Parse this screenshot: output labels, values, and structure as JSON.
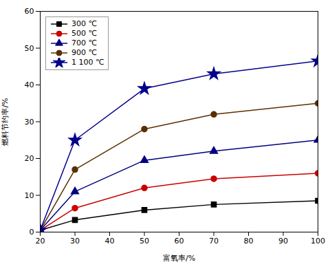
{
  "chart_data": {
    "type": "line",
    "x": [
      20,
      30,
      50,
      70,
      100
    ],
    "series": [
      {
        "name": "300 ℃",
        "color": "#000000",
        "marker": "square",
        "values": [
          0.5,
          3.3,
          6.0,
          7.5,
          8.5
        ]
      },
      {
        "name": "500 ℃",
        "color": "#cc0000",
        "marker": "circle",
        "values": [
          0.5,
          6.5,
          12.0,
          14.5,
          16.0
        ]
      },
      {
        "name": "700 ℃",
        "color": "#00007f",
        "marker": "triangle",
        "values": [
          0.5,
          11.0,
          19.5,
          22.0,
          25.0
        ]
      },
      {
        "name": "900 ℃",
        "color": "#5c2e00",
        "marker": "circle",
        "values": [
          0.5,
          17.0,
          28.0,
          32.0,
          35.0
        ]
      },
      {
        "name": "1 100 ℃",
        "color": "#00008b",
        "marker": "star",
        "values": [
          0.5,
          25.0,
          39.0,
          43.0,
          46.5
        ]
      }
    ],
    "xlabel": "富氧率/%",
    "ylabel": "燃料节约率/%",
    "xlim": [
      20,
      100
    ],
    "ylim": [
      0,
      60
    ],
    "xticks": [
      20,
      30,
      40,
      50,
      60,
      70,
      80,
      90,
      100
    ],
    "yticks": [
      0,
      10,
      20,
      30,
      40,
      50,
      60
    ],
    "grid": false,
    "legend": "upper left"
  }
}
